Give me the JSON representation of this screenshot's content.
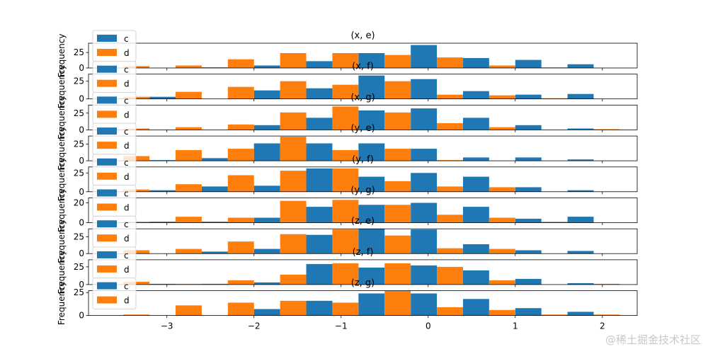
{
  "figure": {
    "watermark": "@稀土掘金技术社区",
    "colors": {
      "c": "#1f77b4",
      "d": "#ff7f0e",
      "axes": "#000000",
      "legend_edge": "#cccccc"
    }
  },
  "chart_data": [
    {
      "type": "bar",
      "title": "(x, e)",
      "ylabel": "Frequency",
      "ylim": [
        0,
        40
      ],
      "yticks": [
        0,
        25
      ],
      "xlim": [
        -3.9,
        2.4
      ],
      "bin_edges": [
        -3.8,
        -3.2,
        -2.6,
        -2.0,
        -1.4,
        -0.8,
        -0.2,
        0.4,
        1.0,
        1.6,
        2.2
      ],
      "series": [
        {
          "name": "c",
          "values": [
            0,
            0,
            1,
            4,
            11,
            24,
            37,
            16,
            13,
            6
          ]
        },
        {
          "name": "d",
          "values": [
            3,
            4,
            14,
            24,
            24,
            21,
            17,
            4,
            1,
            0
          ]
        }
      ],
      "legend": [
        "c",
        "d"
      ],
      "legend_loc": "upper-left"
    },
    {
      "type": "bar",
      "title": "(x, f)",
      "ylabel": "Frequency",
      "ylim": [
        0,
        35
      ],
      "yticks": [
        0,
        25
      ],
      "xlim": [
        -3.9,
        2.4
      ],
      "bin_edges": [
        -3.8,
        -3.2,
        -2.6,
        -2.0,
        -1.4,
        -0.8,
        -0.2,
        0.4,
        1.0,
        1.6,
        2.2
      ],
      "series": [
        {
          "name": "c",
          "values": [
            0,
            3,
            0,
            12,
            15,
            33,
            28,
            11,
            6,
            7
          ]
        },
        {
          "name": "d",
          "values": [
            3,
            10,
            17,
            25,
            20,
            25,
            6,
            5,
            1,
            0
          ]
        }
      ],
      "legend": [
        "c",
        "d"
      ],
      "legend_loc": "upper-left"
    },
    {
      "type": "bar",
      "title": "(x, g)",
      "ylabel": "Frequency",
      "ylim": [
        0,
        37
      ],
      "yticks": [
        0,
        25
      ],
      "xlim": [
        -3.9,
        2.4
      ],
      "bin_edges": [
        -3.8,
        -3.2,
        -2.6,
        -2.0,
        -1.4,
        -0.8,
        -0.2,
        0.4,
        1.0,
        1.6,
        2.2
      ],
      "series": [
        {
          "name": "c",
          "values": [
            0,
            0,
            0,
            7,
            18,
            29,
            32,
            18,
            7,
            2
          ]
        },
        {
          "name": "d",
          "values": [
            2,
            4,
            8,
            26,
            35,
            26,
            10,
            4,
            0,
            1
          ]
        }
      ],
      "legend": [
        "c",
        "d"
      ],
      "legend_loc": "upper-left"
    },
    {
      "type": "bar",
      "title": "(y, e)",
      "ylabel": "Frequency",
      "ylim": [
        0,
        37
      ],
      "yticks": [
        0,
        25
      ],
      "xlim": [
        -3.9,
        2.4
      ],
      "bin_edges": [
        -3.8,
        -3.2,
        -2.6,
        -2.0,
        -1.4,
        -0.8,
        -0.2,
        0.4,
        1.0,
        1.6,
        2.2
      ],
      "series": [
        {
          "name": "c",
          "values": [
            0,
            1,
            4,
            26,
            26,
            26,
            18,
            5,
            5,
            2
          ]
        },
        {
          "name": "d",
          "values": [
            7,
            16,
            18,
            36,
            16,
            18,
            1,
            0,
            0,
            0
          ]
        }
      ],
      "legend": [
        "c",
        "d"
      ],
      "legend_loc": "upper-left"
    },
    {
      "type": "bar",
      "title": "(y, f)",
      "ylabel": "Frequency",
      "ylim": [
        0,
        33
      ],
      "yticks": [
        0,
        25
      ],
      "xlim": [
        -3.9,
        2.4
      ],
      "bin_edges": [
        -3.8,
        -3.2,
        -2.6,
        -2.0,
        -1.4,
        -0.8,
        -0.2,
        0.4,
        1.0,
        1.6,
        2.2
      ],
      "series": [
        {
          "name": "c",
          "values": [
            0,
            2,
            7,
            8,
            31,
            20,
            25,
            20,
            6,
            2
          ]
        },
        {
          "name": "d",
          "values": [
            3,
            10,
            22,
            28,
            31,
            14,
            7,
            6,
            0,
            0
          ]
        }
      ],
      "legend": [
        "c",
        "d"
      ],
      "legend_loc": "upper-left"
    },
    {
      "type": "bar",
      "title": "(y, g)",
      "ylabel": "Frequency",
      "ylim": [
        0,
        25
      ],
      "yticks": [
        0,
        20
      ],
      "xlim": [
        -3.9,
        2.4
      ],
      "bin_edges": [
        -3.8,
        -3.2,
        -2.6,
        -2.0,
        -1.4,
        -0.8,
        -0.2,
        0.4,
        1.0,
        1.6,
        2.2
      ],
      "series": [
        {
          "name": "c",
          "values": [
            0,
            1,
            1,
            5,
            16,
            18,
            20,
            16,
            4,
            6
          ]
        },
        {
          "name": "d",
          "values": [
            1,
            6,
            5,
            22,
            23,
            18,
            8,
            5,
            1,
            0
          ]
        }
      ],
      "legend": [
        "c",
        "d"
      ],
      "legend_loc": "upper-left"
    },
    {
      "type": "bar",
      "title": "(z, e)",
      "ylabel": "Frequency",
      "ylim": [
        0,
        37
      ],
      "yticks": [
        0,
        25
      ],
      "xlim": [
        -3.9,
        2.4
      ],
      "bin_edges": [
        -3.8,
        -3.2,
        -2.6,
        -2.0,
        -1.4,
        -0.8,
        -0.2,
        0.4,
        1.0,
        1.6,
        2.2
      ],
      "series": [
        {
          "name": "c",
          "values": [
            0,
            0,
            3,
            7,
            28,
            37,
            36,
            14,
            5,
            4
          ]
        },
        {
          "name": "d",
          "values": [
            5,
            7,
            18,
            29,
            36,
            27,
            8,
            7,
            0,
            0
          ]
        }
      ],
      "legend": [
        "c",
        "d"
      ],
      "legend_loc": "upper-left"
    },
    {
      "type": "bar",
      "title": "(z, f)",
      "ylabel": "Frequency",
      "ylim": [
        0,
        35
      ],
      "yticks": [
        0,
        25
      ],
      "xlim": [
        -3.9,
        2.4
      ],
      "bin_edges": [
        -3.8,
        -3.2,
        -2.6,
        -2.0,
        -1.4,
        -0.8,
        -0.2,
        0.4,
        1.0,
        1.6,
        2.2
      ],
      "series": [
        {
          "name": "c",
          "values": [
            0,
            1,
            1,
            3,
            29,
            24,
            27,
            20,
            8,
            2
          ]
        },
        {
          "name": "d",
          "values": [
            4,
            1,
            6,
            14,
            30,
            30,
            25,
            6,
            0,
            1
          ]
        }
      ],
      "legend": [
        "c",
        "d"
      ],
      "legend_loc": "upper-left"
    },
    {
      "type": "bar",
      "title": "(z, g)",
      "ylabel": "Frequency",
      "ylim": [
        0,
        27
      ],
      "yticks": [
        0,
        25
      ],
      "xlim": [
        -3.9,
        2.4
      ],
      "bin_edges": [
        -3.8,
        -3.2,
        -2.6,
        -2.0,
        -1.4,
        -0.8,
        -0.2,
        0.4,
        1.0,
        1.6,
        2.2
      ],
      "xticks": [
        -3,
        -2,
        -1,
        0,
        1,
        2
      ],
      "xticklabels": [
        "−3",
        "−2",
        "−1",
        "0",
        "1",
        "2"
      ],
      "series": [
        {
          "name": "c",
          "values": [
            0,
            0,
            0,
            7,
            16,
            24,
            24,
            18,
            8,
            4
          ]
        },
        {
          "name": "d",
          "values": [
            1,
            11,
            14,
            16,
            14,
            27,
            9,
            6,
            1,
            1
          ]
        }
      ],
      "legend": [
        "c",
        "d"
      ],
      "legend_loc": "upper-left"
    }
  ]
}
